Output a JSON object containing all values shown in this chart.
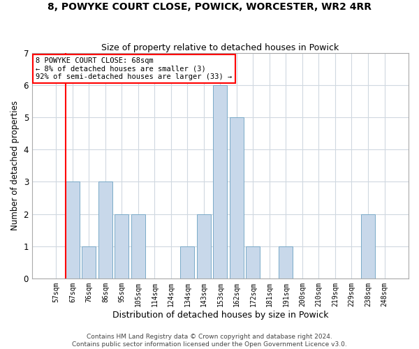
{
  "title": "8, POWYKE COURT CLOSE, POWICK, WORCESTER, WR2 4RR",
  "subtitle": "Size of property relative to detached houses in Powick",
  "xlabel": "Distribution of detached houses by size in Powick",
  "ylabel": "Number of detached properties",
  "footer_line1": "Contains HM Land Registry data © Crown copyright and database right 2024.",
  "footer_line2": "Contains public sector information licensed under the Open Government Licence v3.0.",
  "bins": [
    "57sqm",
    "67sqm",
    "76sqm",
    "86sqm",
    "95sqm",
    "105sqm",
    "114sqm",
    "124sqm",
    "134sqm",
    "143sqm",
    "153sqm",
    "162sqm",
    "172sqm",
    "181sqm",
    "191sqm",
    "200sqm",
    "210sqm",
    "219sqm",
    "229sqm",
    "238sqm",
    "248sqm"
  ],
  "values": [
    0,
    3,
    1,
    3,
    2,
    2,
    0,
    0,
    1,
    2,
    6,
    5,
    1,
    0,
    1,
    0,
    0,
    0,
    0,
    2,
    0
  ],
  "bar_color": "#c8d8ea",
  "bar_edge_color": "#7aaac8",
  "grid_color": "#d0d8e0",
  "annotation_text": "8 POWYKE COURT CLOSE: 68sqm\n← 8% of detached houses are smaller (3)\n92% of semi-detached houses are larger (33) →",
  "annotation_box_facecolor": "white",
  "annotation_box_edgecolor": "red",
  "vline_color": "red",
  "vline_x_index": 1,
  "bar_width": 0.85,
  "ylim": [
    0,
    7
  ],
  "yticks": [
    0,
    1,
    2,
    3,
    4,
    5,
    6,
    7
  ],
  "background_color": "white",
  "title_fontsize": 10,
  "subtitle_fontsize": 9,
  "xlabel_fontsize": 9,
  "ylabel_fontsize": 8.5,
  "xtick_fontsize": 7,
  "ytick_fontsize": 8.5,
  "footer_fontsize": 6.5,
  "annotation_fontsize": 7.5
}
